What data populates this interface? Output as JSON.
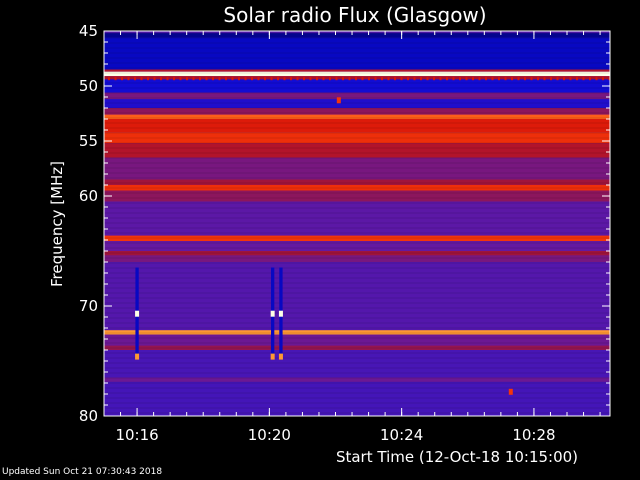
{
  "chart_data": {
    "type": "heatmap",
    "title": "Solar radio Flux (Glasgow)",
    "xlabel": "Start Time (12-Oct-18 10:15:00)",
    "ylabel": "Frequency [MHz]",
    "x_range_minutes": [
      0,
      15.3
    ],
    "y_range_mhz": [
      45,
      80
    ],
    "y_ticks": [
      "45",
      "50",
      "55",
      "60",
      "70",
      "80"
    ],
    "y_tick_values": [
      45,
      50,
      55,
      60,
      70,
      80
    ],
    "x_ticks": [
      "10:16",
      "10:20",
      "10:24",
      "10:28"
    ],
    "x_tick_values": [
      1,
      5,
      9,
      13
    ],
    "background_level": 0.35,
    "bands": [
      {
        "f0": 45.2,
        "f1": 45.6,
        "level": 0.05
      },
      {
        "f0": 45.6,
        "f1": 48.5,
        "level": 0.1
      },
      {
        "f0": 48.5,
        "f1": 48.7,
        "level": 0.6
      },
      {
        "f0": 48.7,
        "f1": 49.1,
        "level": 1.0
      },
      {
        "f0": 49.1,
        "f1": 49.4,
        "level": 0.6
      },
      {
        "f0": 49.4,
        "f1": 50.6,
        "level": 0.15
      },
      {
        "f0": 50.6,
        "f1": 51.2,
        "level": 0.45
      },
      {
        "f0": 51.2,
        "f1": 52.0,
        "level": 0.2
      },
      {
        "f0": 52.0,
        "f1": 52.6,
        "level": 0.5
      },
      {
        "f0": 52.6,
        "f1": 53.0,
        "level": 0.85
      },
      {
        "f0": 53.0,
        "f1": 54.2,
        "level": 0.72
      },
      {
        "f0": 54.2,
        "f1": 55.2,
        "level": 0.78
      },
      {
        "f0": 55.2,
        "f1": 56.5,
        "level": 0.6
      },
      {
        "f0": 56.5,
        "f1": 58.5,
        "level": 0.45
      },
      {
        "f0": 58.5,
        "f1": 59.0,
        "level": 0.55
      },
      {
        "f0": 59.0,
        "f1": 59.5,
        "level": 0.78
      },
      {
        "f0": 59.5,
        "f1": 60.5,
        "level": 0.5
      },
      {
        "f0": 60.5,
        "f1": 63.6,
        "level": 0.38
      },
      {
        "f0": 63.6,
        "f1": 64.1,
        "level": 0.8
      },
      {
        "f0": 64.1,
        "f1": 65.0,
        "level": 0.4
      },
      {
        "f0": 65.0,
        "f1": 65.4,
        "level": 0.55
      },
      {
        "f0": 65.4,
        "f1": 66.0,
        "level": 0.45
      },
      {
        "f0": 66.0,
        "f1": 72.2,
        "level": 0.36
      },
      {
        "f0": 72.2,
        "f1": 72.6,
        "level": 0.9
      },
      {
        "f0": 72.6,
        "f1": 73.6,
        "level": 0.42
      },
      {
        "f0": 73.6,
        "f1": 74.0,
        "level": 0.52
      },
      {
        "f0": 74.0,
        "f1": 76.5,
        "level": 0.33
      },
      {
        "f0": 76.5,
        "f1": 76.9,
        "level": 0.42
      },
      {
        "f0": 76.9,
        "f1": 80.0,
        "level": 0.32
      }
    ],
    "bursts": [
      {
        "t": 1.0,
        "f0": 66.5,
        "f1": 74.8,
        "width_min": 0.1
      },
      {
        "t": 5.1,
        "f0": 66.5,
        "f1": 74.8,
        "width_min": 0.1
      },
      {
        "t": 5.35,
        "f0": 66.5,
        "f1": 74.8,
        "width_min": 0.1
      }
    ],
    "hotspots": [
      {
        "t": 1.0,
        "f": 70.7,
        "level": 1.0
      },
      {
        "t": 5.1,
        "f": 70.7,
        "level": 1.0
      },
      {
        "t": 5.35,
        "f": 70.7,
        "level": 1.0
      },
      {
        "t": 1.0,
        "f": 74.6,
        "level": 0.9
      },
      {
        "t": 5.1,
        "f": 74.6,
        "level": 0.9
      },
      {
        "t": 5.35,
        "f": 74.6,
        "level": 0.9
      },
      {
        "t": 7.1,
        "f": 51.3,
        "level": 0.8
      },
      {
        "t": 12.3,
        "f": 77.8,
        "level": 0.8
      }
    ]
  },
  "footer": {
    "updated": "Updated Sun Oct 21 07:30:43 2018"
  }
}
